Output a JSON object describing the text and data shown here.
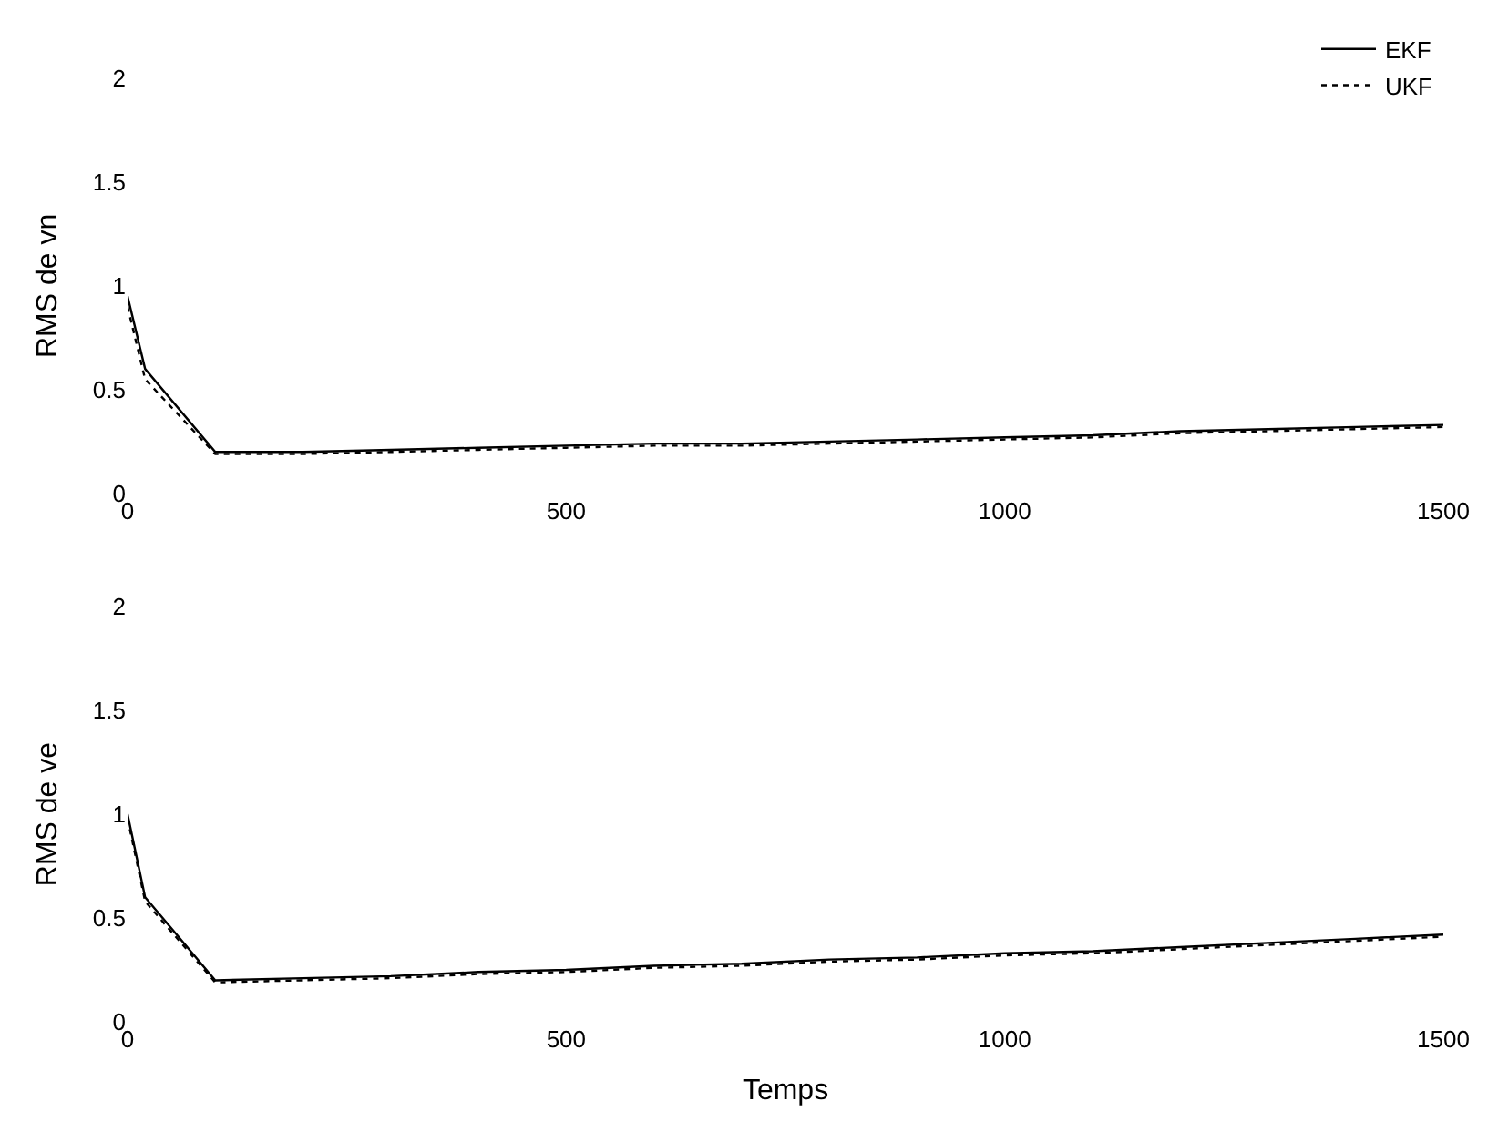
{
  "chart_data": [
    {
      "type": "line",
      "ylabel": "RMS de vn",
      "x": [
        0,
        20,
        100,
        200,
        300,
        400,
        500,
        600,
        700,
        800,
        900,
        1000,
        1100,
        1200,
        1300,
        1400,
        1500
      ],
      "xlim": [
        0,
        1500
      ],
      "xticks": [
        0,
        500,
        1000,
        1500
      ],
      "ylim": [
        0,
        2
      ],
      "yticks": [
        0,
        0.5,
        1,
        1.5,
        2
      ],
      "legend": "top right",
      "series": [
        {
          "name": "EKF",
          "color": "#000000",
          "line_style": "solid",
          "values": [
            0.95,
            0.6,
            0.2,
            0.2,
            0.21,
            0.22,
            0.23,
            0.24,
            0.24,
            0.25,
            0.26,
            0.27,
            0.28,
            0.3,
            0.31,
            0.32,
            0.33
          ]
        },
        {
          "name": "UKF",
          "color": "#000000",
          "line_style": "dotted",
          "values": [
            0.9,
            0.55,
            0.19,
            0.19,
            0.2,
            0.21,
            0.22,
            0.23,
            0.23,
            0.24,
            0.25,
            0.26,
            0.27,
            0.29,
            0.3,
            0.31,
            0.32
          ]
        }
      ]
    },
    {
      "type": "line",
      "ylabel": "RMS de ve",
      "xlabel": "Temps",
      "x": [
        0,
        20,
        100,
        200,
        300,
        400,
        500,
        600,
        700,
        800,
        900,
        1000,
        1100,
        1200,
        1300,
        1400,
        1500
      ],
      "xlim": [
        0,
        1500
      ],
      "xticks": [
        0,
        500,
        1000,
        1500
      ],
      "ylim": [
        0,
        2
      ],
      "yticks": [
        0,
        0.5,
        1,
        1.5,
        2
      ],
      "series": [
        {
          "color": "#000000",
          "line_style": "solid",
          "values": [
            1.0,
            0.6,
            0.2,
            0.21,
            0.22,
            0.24,
            0.25,
            0.27,
            0.28,
            0.3,
            0.31,
            0.33,
            0.34,
            0.36,
            0.38,
            0.4,
            0.42
          ]
        },
        {
          "color": "#000000",
          "line_style": "dotted",
          "values": [
            0.98,
            0.58,
            0.19,
            0.2,
            0.21,
            0.23,
            0.24,
            0.26,
            0.27,
            0.29,
            0.3,
            0.32,
            0.33,
            0.35,
            0.37,
            0.39,
            0.41
          ]
        }
      ]
    }
  ]
}
